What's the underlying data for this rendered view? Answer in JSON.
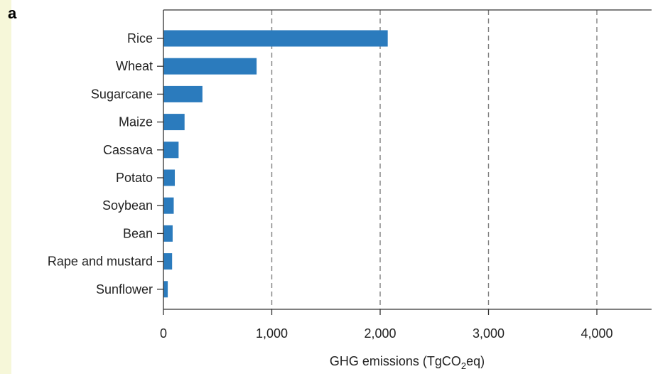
{
  "panel_label": "a",
  "chart_data": {
    "type": "bar",
    "orientation": "horizontal",
    "categories": [
      "Rice",
      "Wheat",
      "Sugarcane",
      "Maize",
      "Cassava",
      "Potato",
      "Soybean",
      "Bean",
      "Rape and mustard",
      "Sunflower"
    ],
    "values": [
      2070,
      860,
      360,
      195,
      140,
      105,
      95,
      85,
      80,
      40
    ],
    "xlabel": "GHG emissions (TgCO",
    "xlabel_subscript": "2",
    "xlabel_suffix": "eq)",
    "xlim": [
      0,
      4500
    ],
    "xticks": [
      0,
      1000,
      2000,
      3000,
      4000
    ],
    "xtick_labels": [
      "0",
      "1,000",
      "2,000",
      "3,000",
      "4,000"
    ],
    "grid": "vertical dashed at major ticks",
    "bar_color": "#2b7bbd",
    "grid_color": "#808080"
  }
}
